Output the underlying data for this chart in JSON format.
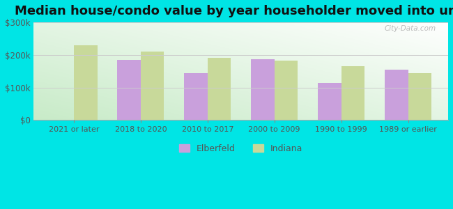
{
  "title": "Median house/condo value by year householder moved into unit",
  "categories": [
    "2021 or later",
    "2018 to 2020",
    "2010 to 2017",
    "2000 to 2009",
    "1990 to 1999",
    "1989 or earlier"
  ],
  "elberfeld_values": [
    null,
    185000,
    145000,
    187000,
    113000,
    155000
  ],
  "indiana_values": [
    230000,
    210000,
    190000,
    183000,
    165000,
    143000
  ],
  "elberfeld_color": "#c9a0dc",
  "indiana_color": "#c8d99a",
  "outer_background": "#00e5e5",
  "ylim": [
    0,
    300000
  ],
  "yticks": [
    0,
    100000,
    200000,
    300000
  ],
  "ytick_labels": [
    "$0",
    "$100k",
    "$200k",
    "$300k"
  ],
  "bar_width": 0.35,
  "legend_labels": [
    "Elberfeld",
    "Indiana"
  ],
  "title_fontsize": 13,
  "watermark_text": "City-Data.com",
  "grid_color": "#cccccc",
  "tick_label_color": "#555555"
}
